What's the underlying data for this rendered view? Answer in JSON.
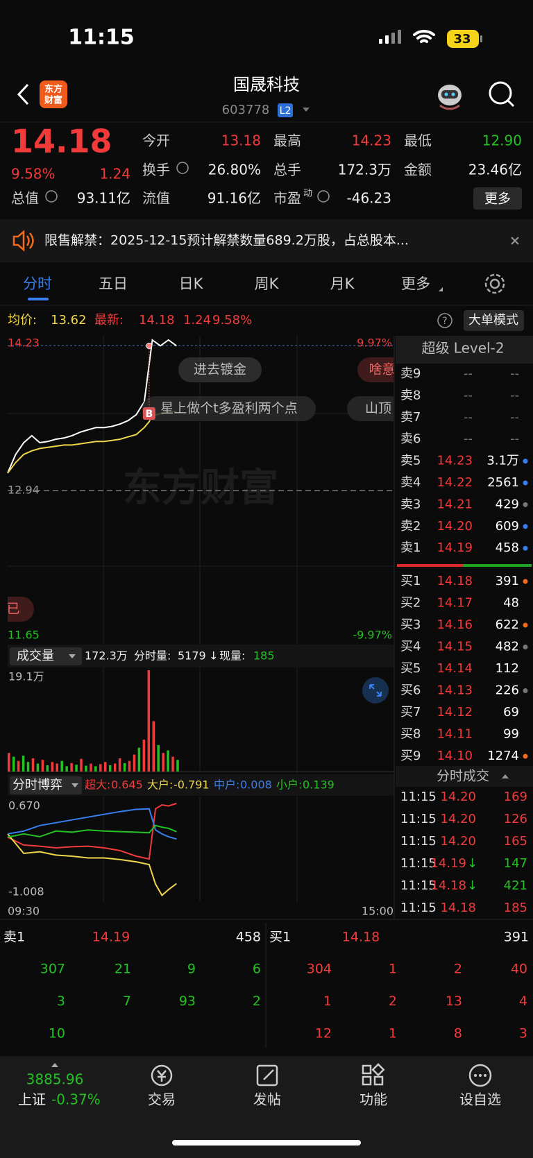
{
  "status_bar": {
    "time": "11:15",
    "battery": "33"
  },
  "header": {
    "logo": [
      "东方",
      "财富"
    ],
    "title": "国晟科技",
    "code": "603778",
    "badge": "L2"
  },
  "quote": {
    "price": "14.18",
    "change_pct": "9.58%",
    "change": "1.24",
    "stats": [
      {
        "label": "今开",
        "value": "13.18",
        "color": "#f23a3a"
      },
      {
        "label": "最高",
        "value": "14.23",
        "color": "#f23a3a"
      },
      {
        "label": "最低",
        "value": "12.90",
        "color": "#22c322"
      },
      {
        "label": "换手",
        "value": "26.80%",
        "color": "#eeeeee"
      },
      {
        "label": "总手",
        "value": "172.3万",
        "color": "#eeeeee"
      },
      {
        "label": "金额",
        "value": "23.46亿",
        "color": "#eeeeee"
      },
      {
        "label": "总值",
        "value": "93.11亿",
        "color": "#eeeeee"
      },
      {
        "label": "流值",
        "value": "91.16亿",
        "color": "#eeeeee"
      },
      {
        "label": "市盈",
        "sup": "动",
        "value": "-46.23",
        "color": "#eeeeee"
      }
    ],
    "more": "更多"
  },
  "notice": {
    "text": "限售解禁：2025-12-15预计解禁数量689.2万股，占总股本..."
  },
  "tabs": [
    "分时",
    "五日",
    "日K",
    "周K",
    "月K",
    "更多"
  ],
  "info": {
    "avg_label": "均价:",
    "avg": "13.62",
    "last_label": "最新:",
    "last": "14.18",
    "change": "1.24",
    "change_pct": "9.58%",
    "help": "?",
    "mode_button": "大单模式"
  },
  "price_chart": {
    "type": "line",
    "x": [
      0,
      5,
      10,
      15,
      20,
      25,
      30,
      35,
      40,
      45,
      50,
      55,
      60,
      65,
      70,
      75,
      80,
      85,
      88,
      90,
      95,
      100,
      105
    ],
    "xlim": [
      0,
      240
    ],
    "series": [
      {
        "color": "#ffffff",
        "values": [
          13.09,
          13.25,
          13.35,
          13.41,
          13.35,
          13.36,
          13.38,
          13.39,
          13.41,
          13.44,
          13.46,
          13.48,
          13.48,
          13.49,
          13.51,
          13.54,
          13.59,
          13.7,
          14.02,
          14.23,
          14.18,
          14.23,
          14.18
        ]
      },
      {
        "color": "#f0d64a",
        "values": [
          13.09,
          13.18,
          13.25,
          13.28,
          13.3,
          13.31,
          13.32,
          13.33,
          13.33,
          13.34,
          13.35,
          13.36,
          13.36,
          13.37,
          13.38,
          13.4,
          13.42,
          13.48,
          13.53,
          13.58,
          13.6,
          13.61,
          13.62
        ]
      }
    ],
    "ylim": [
      11.65,
      14.23
    ],
    "yticks": [
      14.23,
      12.94,
      11.65
    ],
    "y2lim": [
      -9.97,
      9.97
    ],
    "y2ticks": [
      {
        "value": 9.97,
        "label": "9.97%"
      },
      {
        "value": -9.97,
        "label": "-9.97%"
      }
    ],
    "buy_marker": "B",
    "watermark": "东方财富",
    "comments": [
      "进去镀金",
      "星上做个t多盈利两个点",
      "山顶",
      "啥意思",
      "已"
    ]
  },
  "level2": {
    "title": "超级 Level-2",
    "asks": [
      {
        "label": "卖9",
        "price": "--",
        "volume": "--"
      },
      {
        "label": "卖8",
        "price": "--",
        "volume": "--"
      },
      {
        "label": "卖7",
        "price": "--",
        "volume": "--"
      },
      {
        "label": "卖6",
        "price": "--",
        "volume": "--"
      },
      {
        "label": "卖5",
        "price": "14.23",
        "volume": "3.1万",
        "dot": "#3a7ff0"
      },
      {
        "label": "卖4",
        "price": "14.22",
        "volume": "2561",
        "dot": "#3a7ff0"
      },
      {
        "label": "卖3",
        "price": "14.21",
        "volume": "429",
        "dot": "#777777"
      },
      {
        "label": "卖2",
        "price": "14.20",
        "volume": "609",
        "dot": "#3a7ff0"
      },
      {
        "label": "卖1",
        "price": "14.19",
        "volume": "458",
        "dot": "#3a7ff0"
      }
    ],
    "bids": [
      {
        "label": "买1",
        "price": "14.18",
        "volume": "391",
        "dot": "#f26a1b"
      },
      {
        "label": "买2",
        "price": "14.17",
        "volume": "48"
      },
      {
        "label": "买3",
        "price": "14.16",
        "volume": "622",
        "dot": "#f26a1b"
      },
      {
        "label": "买4",
        "price": "14.15",
        "volume": "482",
        "dot": "#777777"
      },
      {
        "label": "买5",
        "price": "14.14",
        "volume": "112"
      },
      {
        "label": "买6",
        "price": "14.13",
        "volume": "226",
        "dot": "#777777"
      },
      {
        "label": "买7",
        "price": "14.12",
        "volume": "69"
      },
      {
        "label": "买8",
        "price": "14.11",
        "volume": "99"
      },
      {
        "label": "买9",
        "price": "14.10",
        "volume": "1274",
        "dot": "#f26a1b"
      }
    ],
    "trades_title": "分时成交",
    "trades": [
      {
        "time": "11:15",
        "price": "14.20",
        "volume": "169",
        "volume_color": "#f23a3a"
      },
      {
        "time": "11:15",
        "price": "14.20",
        "volume": "126",
        "volume_color": "#f23a3a"
      },
      {
        "time": "11:15",
        "price": "14.20",
        "volume": "165",
        "volume_color": "#f23a3a"
      },
      {
        "time": "11:15",
        "price": "14.19",
        "arrow": "↓",
        "volume": "147",
        "volume_color": "#22c322"
      },
      {
        "time": "11:15",
        "price": "14.18",
        "arrow": "↓",
        "volume": "421",
        "volume_color": "#22c322"
      },
      {
        "time": "11:15",
        "price": "14.18",
        "volume": "185",
        "volume_color": "#f23a3a"
      }
    ]
  },
  "volume_chart": {
    "type": "bar",
    "title": "成交量",
    "total": "172.3万",
    "minute_label": "分时量:",
    "minute_volume": "5179",
    "arrow": "↓",
    "current_label": "现量:",
    "current": "185",
    "x": [
      0,
      3,
      6,
      9,
      12,
      15,
      18,
      21,
      24,
      27,
      30,
      33,
      36,
      39,
      42,
      45,
      48,
      51,
      54,
      57,
      60,
      63,
      66,
      69,
      72,
      75,
      78,
      81,
      84,
      87,
      90,
      93,
      96,
      99,
      102,
      105
    ],
    "xlim": [
      0,
      240
    ],
    "values": [
      3.5,
      2.8,
      2.0,
      3.0,
      1.8,
      2.5,
      1.5,
      2.2,
      1.2,
      1.8,
      1.5,
      2.0,
      1.0,
      1.6,
      1.3,
      2.4,
      1.1,
      1.5,
      1.0,
      1.4,
      1.8,
      1.2,
      1.5,
      2.5,
      1.6,
      2.0,
      3.2,
      4.5,
      6.0,
      19.1,
      9.5,
      5.0,
      3.5,
      4.0,
      2.8,
      2.2
    ],
    "colors": [
      "#f23a3a",
      "#22c322",
      "#f23a3a",
      "#22c322",
      "#22c322",
      "#f23a3a",
      "#22c322",
      "#f23a3a",
      "#22c322",
      "#f23a3a",
      "#f23a3a",
      "#22c322",
      "#22c322",
      "#f23a3a",
      "#22c322",
      "#f23a3a",
      "#22c322",
      "#f23a3a",
      "#22c322",
      "#f23a3a",
      "#f23a3a",
      "#22c322",
      "#f23a3a",
      "#f23a3a",
      "#22c322",
      "#f23a3a",
      "#f23a3a",
      "#22c322",
      "#f23a3a",
      "#f23a3a",
      "#f23a3a",
      "#22c322",
      "#f23a3a",
      "#22c322",
      "#f23a3a",
      "#22c322"
    ],
    "ylim": [
      0,
      19.1
    ],
    "yticks": [
      {
        "value": 19.1,
        "label": "19.1万"
      }
    ]
  },
  "game_chart": {
    "type": "line",
    "title": "分时博弈",
    "x": [
      0,
      10,
      20,
      30,
      40,
      50,
      60,
      70,
      80,
      88,
      92,
      96,
      100,
      105
    ],
    "xlim": [
      0,
      240
    ],
    "xticks": [
      {
        "value": 0,
        "label": "09:30"
      },
      {
        "value": 240,
        "label": "15:00"
      }
    ],
    "ylim": [
      -1.008,
      0.67
    ],
    "yticks": [
      {
        "value": 0.67,
        "label": "0.670"
      },
      -1.008
    ],
    "series": [
      {
        "name": "超大:",
        "color": "#f23a3a",
        "values": [
          0.04,
          -0.1,
          -0.12,
          -0.15,
          -0.13,
          -0.12,
          -0.15,
          -0.2,
          -0.3,
          -0.35,
          0.55,
          0.62,
          0.6,
          0.645
        ]
      },
      {
        "name": "大户:",
        "color": "#f0d64a",
        "values": [
          0.1,
          -0.25,
          -0.22,
          -0.28,
          -0.3,
          -0.33,
          -0.33,
          -0.36,
          -0.4,
          -0.45,
          -0.8,
          -1.0,
          -0.9,
          -0.791
        ]
      },
      {
        "name": "中户:",
        "color": "#3a7ff0",
        "values": [
          0.1,
          0.15,
          0.25,
          0.3,
          0.35,
          0.4,
          0.45,
          0.5,
          0.54,
          0.55,
          0.17,
          0.1,
          0.05,
          0.008
        ]
      },
      {
        "name": "小户:",
        "color": "#22c322",
        "values": [
          0.04,
          0.1,
          0.05,
          0.15,
          0.13,
          0.17,
          0.15,
          0.14,
          0.13,
          0.12,
          0.25,
          0.22,
          0.2,
          0.139
        ]
      }
    ]
  },
  "queue": {
    "ask": {
      "label": "卖1",
      "price": "14.19",
      "volume": "458",
      "orders": [
        [
          "307",
          "21",
          "9",
          "6"
        ],
        [
          "3",
          "7",
          "93",
          "2"
        ],
        [
          "10"
        ]
      ]
    },
    "bid": {
      "label": "买1",
      "price": "14.18",
      "volume": "391",
      "orders": [
        [
          "304",
          "1",
          "2",
          "40"
        ],
        [
          "1",
          "2",
          "13",
          "4"
        ],
        [
          "12",
          "1",
          "8",
          "3"
        ]
      ]
    }
  },
  "bottom_nav": {
    "index": {
      "value": "3885.96",
      "name": "上证",
      "change": "-0.37%"
    },
    "items": [
      "交易",
      "发帖",
      "功能",
      "设自选"
    ]
  }
}
